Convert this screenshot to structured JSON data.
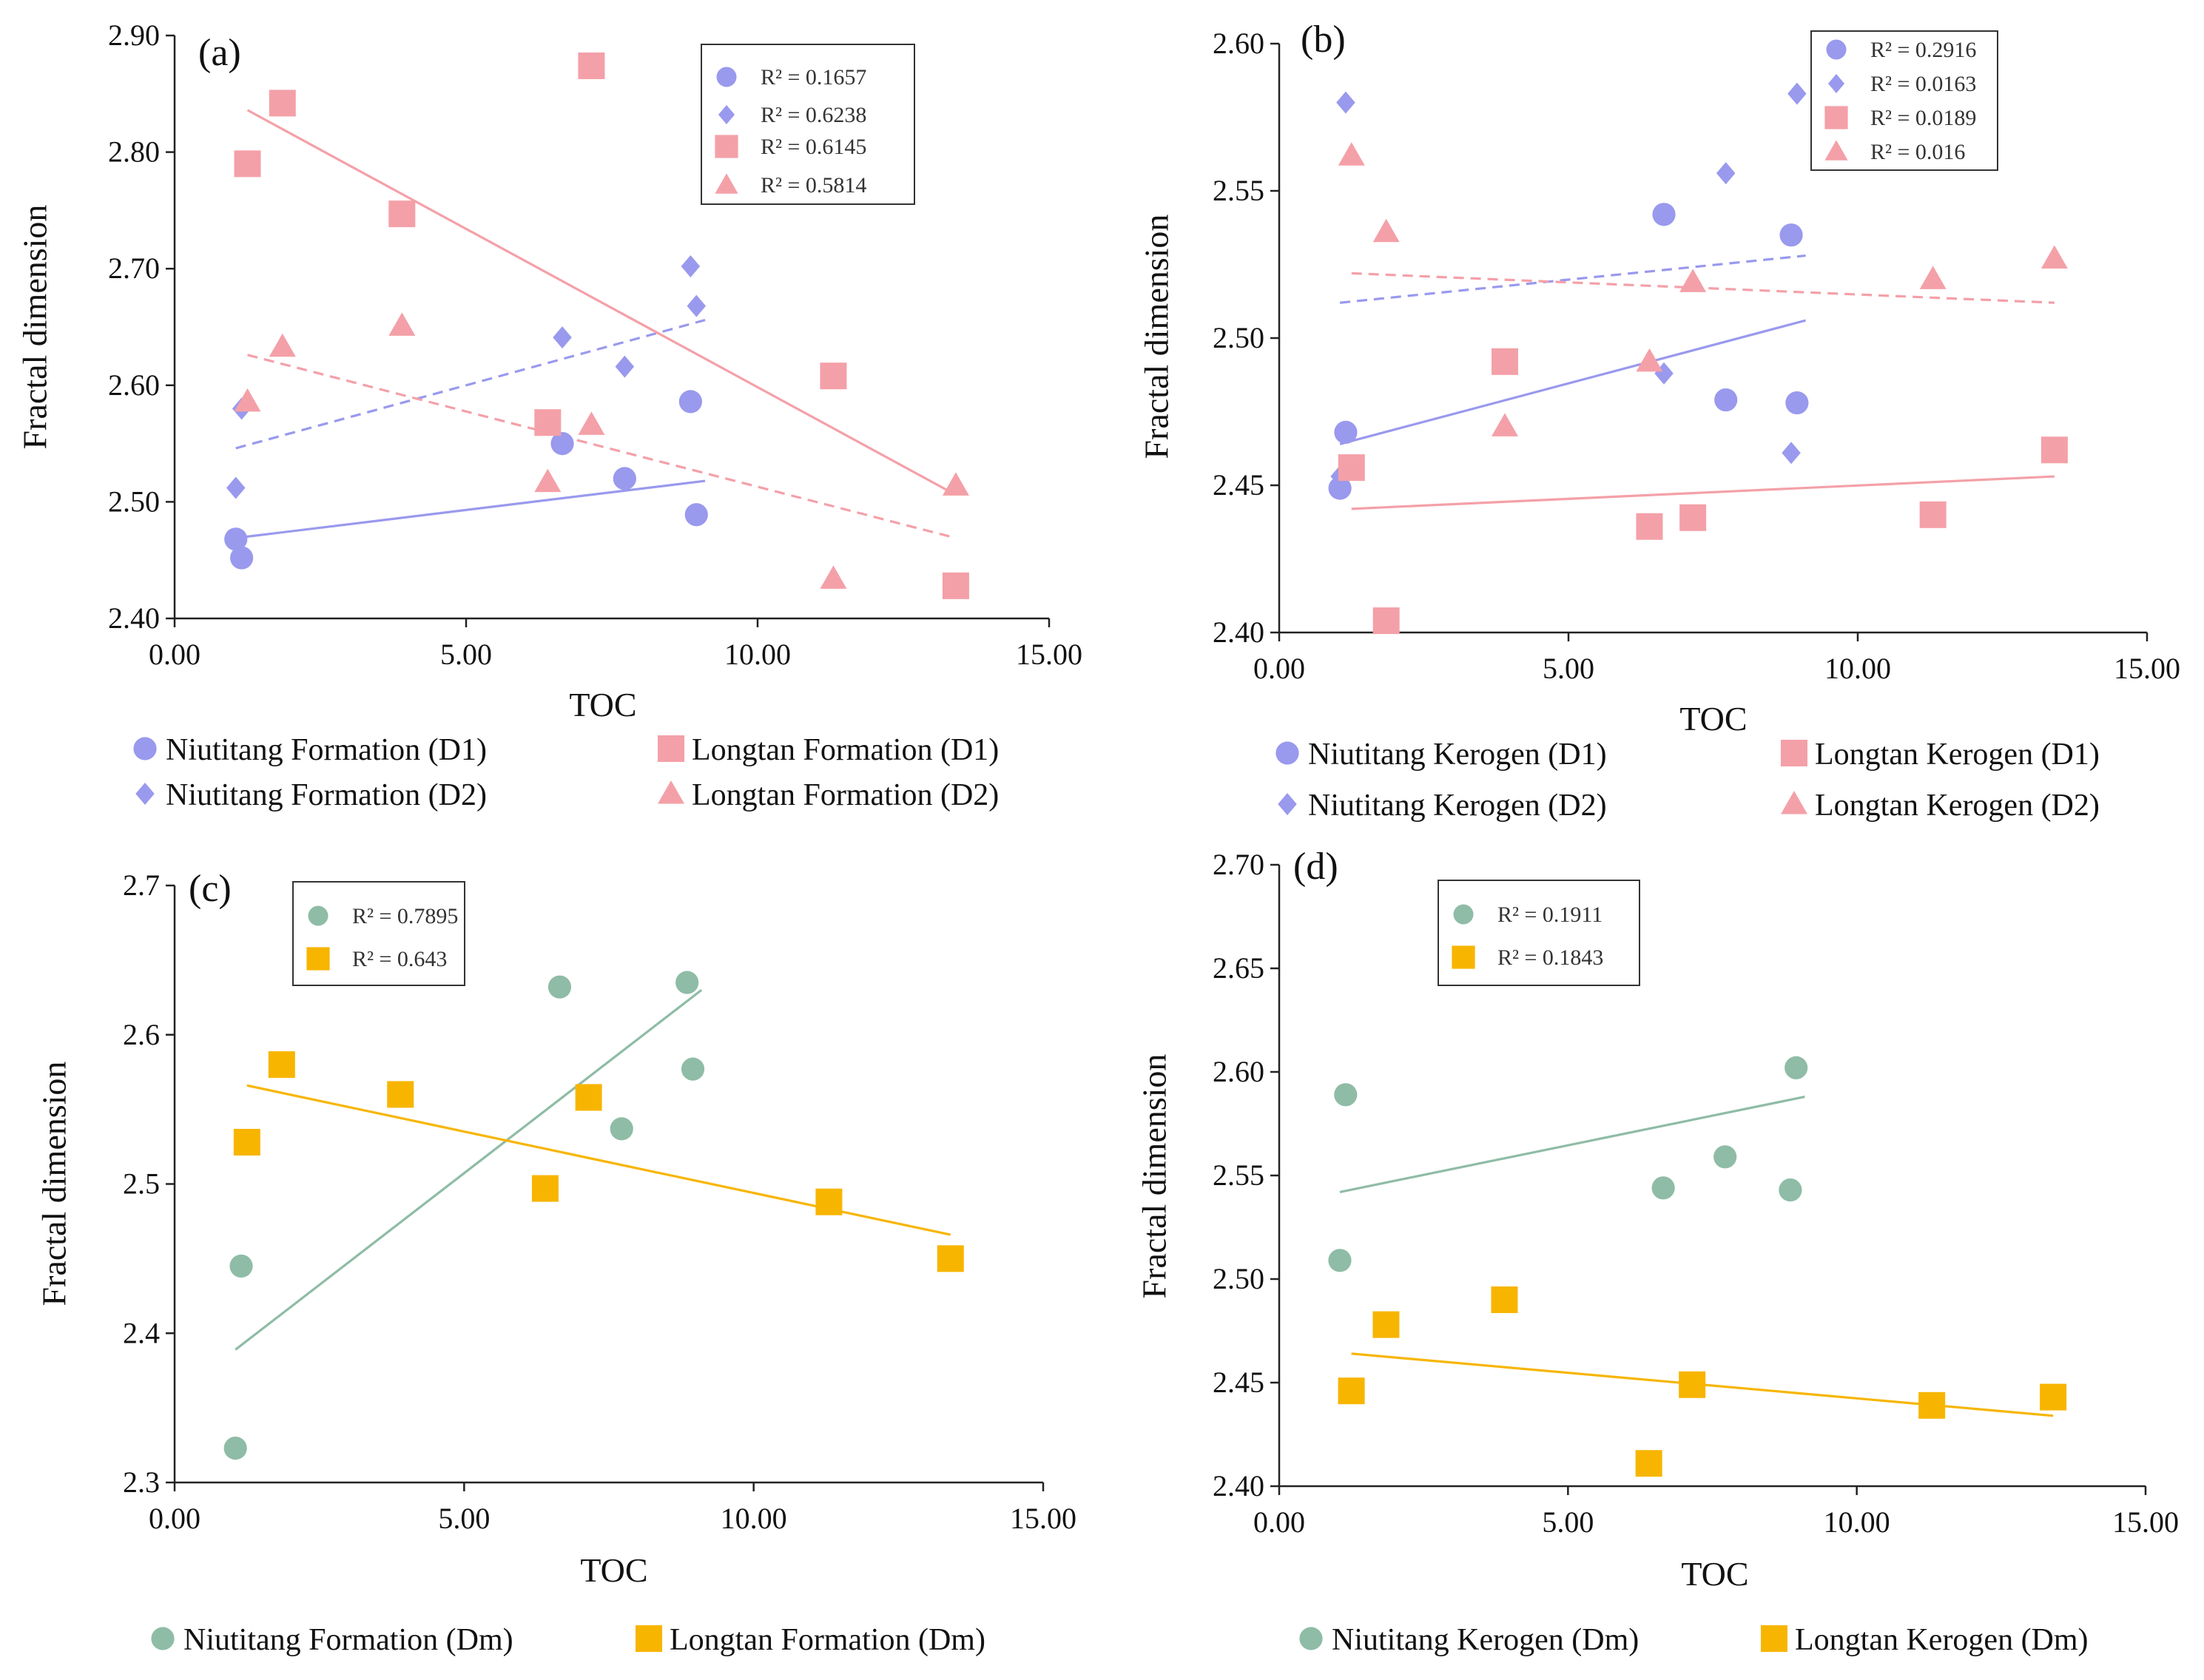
{
  "colors": {
    "niutitang": "#9999ee",
    "longtan": "#f4a0a8",
    "green": "#8fbca6",
    "yellow": "#f7b500",
    "axis": "#222222"
  },
  "chart_data": [
    {
      "type": "scatter",
      "panel_label": "(a)",
      "xlabel": "TOC",
      "ylabel": "Fractal dimension",
      "xlim": [
        0,
        15
      ],
      "ylim": [
        2.4,
        2.9
      ],
      "x_ticks": [
        "0.00",
        "5.00",
        "10.00",
        "15.00"
      ],
      "y_ticks": [
        "2.40",
        "2.50",
        "2.60",
        "2.70",
        "2.80",
        "2.90"
      ],
      "series": [
        {
          "name": "Niutitang Formation (D1)",
          "marker": "circle",
          "color": "#9999ee",
          "r2": "R² = 0.1657",
          "x": [
            1.05,
            1.15,
            6.65,
            7.72,
            8.85,
            8.95
          ],
          "y": [
            2.468,
            2.452,
            2.55,
            2.52,
            2.586,
            2.489
          ],
          "trend": {
            "x": [
              1.05,
              9.1
            ],
            "y": [
              2.469,
              2.518
            ],
            "dashed": false
          }
        },
        {
          "name": "Niutitang Formation (D2)",
          "marker": "diamond",
          "color": "#9999ee",
          "r2": "R² = 0.6238",
          "x": [
            1.05,
            1.15,
            6.65,
            7.72,
            8.85,
            8.95
          ],
          "y": [
            2.512,
            2.58,
            2.641,
            2.616,
            2.702,
            2.668
          ],
          "trend": {
            "x": [
              1.05,
              9.1
            ],
            "y": [
              2.546,
              2.656
            ],
            "dashed": true
          }
        },
        {
          "name": "Longtan Formation (D1)",
          "marker": "square",
          "color": "#f4a0a8",
          "r2": "R² = 0.6145",
          "x": [
            1.25,
            1.85,
            3.9,
            6.4,
            7.15,
            11.3,
            13.4
          ],
          "y": [
            2.79,
            2.842,
            2.747,
            2.568,
            2.874,
            2.608,
            2.428
          ],
          "trend": {
            "x": [
              1.25,
              13.4
            ],
            "y": [
              2.836,
              2.506
            ],
            "dashed": false
          }
        },
        {
          "name": "Longtan Formation (D2)",
          "marker": "triangle",
          "color": "#f4a0a8",
          "r2": "R² = 0.5814",
          "x": [
            1.25,
            1.85,
            3.9,
            6.4,
            7.15,
            11.3,
            13.4
          ],
          "y": [
            2.586,
            2.633,
            2.651,
            2.517,
            2.566,
            2.434,
            2.514
          ],
          "trend": {
            "x": [
              1.25,
              13.4
            ],
            "y": [
              2.626,
              2.469
            ],
            "dashed": true
          }
        }
      ]
    },
    {
      "type": "scatter",
      "panel_label": "(b)",
      "xlabel": "TOC",
      "ylabel": "Fractal dimension",
      "xlim": [
        0,
        15
      ],
      "ylim": [
        2.4,
        2.6
      ],
      "x_ticks": [
        "0.00",
        "5.00",
        "10.00",
        "15.00"
      ],
      "y_ticks": [
        "2.40",
        "2.45",
        "2.50",
        "2.55",
        "2.60"
      ],
      "series": [
        {
          "name": "Niutitang Kerogen (D1)",
          "marker": "circle",
          "color": "#9999ee",
          "r2": "R² = 0.2916",
          "x": [
            1.05,
            1.15,
            6.65,
            7.72,
            8.85,
            8.95
          ],
          "y": [
            2.449,
            2.468,
            2.542,
            2.479,
            2.535,
            2.478
          ],
          "trend": {
            "x": [
              1.05,
              9.1
            ],
            "y": [
              2.464,
              2.506
            ],
            "dashed": false
          }
        },
        {
          "name": "Niutitang Kerogen (D2)",
          "marker": "diamond",
          "color": "#9999ee",
          "r2": "R² = 0.0163",
          "x": [
            1.05,
            1.15,
            6.65,
            7.72,
            8.85,
            8.95
          ],
          "y": [
            2.453,
            2.58,
            2.488,
            2.556,
            2.461,
            2.583
          ],
          "trend": {
            "x": [
              1.05,
              9.1
            ],
            "y": [
              2.512,
              2.528
            ],
            "dashed": true
          }
        },
        {
          "name": "Longtan Kerogen (D1)",
          "marker": "square",
          "color": "#f4a0a8",
          "r2": "R² = 0.0189",
          "x": [
            1.25,
            1.85,
            3.9,
            6.4,
            7.15,
            11.3,
            13.4
          ],
          "y": [
            2.456,
            2.404,
            2.492,
            2.436,
            2.439,
            2.44,
            2.462
          ],
          "trend": {
            "x": [
              1.25,
              13.4
            ],
            "y": [
              2.442,
              2.453
            ],
            "dashed": false
          }
        },
        {
          "name": "Longtan Kerogen (D2)",
          "marker": "triangle",
          "color": "#f4a0a8",
          "r2": "R² = 0.016",
          "x": [
            1.25,
            1.85,
            3.9,
            6.4,
            7.15,
            11.3,
            13.4
          ],
          "y": [
            2.562,
            2.536,
            2.47,
            2.492,
            2.519,
            2.52,
            2.527
          ],
          "trend": {
            "x": [
              1.25,
              13.4
            ],
            "y": [
              2.522,
              2.512
            ],
            "dashed": true
          }
        }
      ]
    },
    {
      "type": "scatter",
      "panel_label": "(c)",
      "xlabel": "TOC",
      "ylabel": "Fractal dimension",
      "xlim": [
        0,
        15
      ],
      "ylim": [
        2.3,
        2.7
      ],
      "x_ticks": [
        "0.00",
        "5.00",
        "10.00",
        "15.00"
      ],
      "y_ticks": [
        "2.3",
        "2.4",
        "2.5",
        "2.6",
        "2.7"
      ],
      "series": [
        {
          "name": "Niutitang Formation (Dm)",
          "marker": "circle",
          "color": "#8fbca6",
          "r2": "R² = 0.7895",
          "x": [
            1.05,
            1.15,
            6.65,
            7.72,
            8.85,
            8.95
          ],
          "y": [
            2.323,
            2.445,
            2.632,
            2.537,
            2.635,
            2.577
          ],
          "trend": {
            "x": [
              1.05,
              9.1
            ],
            "y": [
              2.389,
              2.63
            ],
            "dashed": false
          }
        },
        {
          "name": "Longtan Formation (Dm)",
          "marker": "square",
          "color": "#f7b500",
          "r2": "R² = 0.643",
          "x": [
            1.25,
            1.85,
            3.9,
            6.4,
            7.15,
            11.3,
            13.4
          ],
          "y": [
            2.528,
            2.58,
            2.56,
            2.497,
            2.558,
            2.488,
            2.45
          ],
          "trend": {
            "x": [
              1.25,
              13.4
            ],
            "y": [
              2.566,
              2.466
            ],
            "dashed": false
          }
        }
      ]
    },
    {
      "type": "scatter",
      "panel_label": "(d)",
      "xlabel": "TOC",
      "ylabel": "Fractal dimension",
      "xlim": [
        0,
        15
      ],
      "ylim": [
        2.4,
        2.7
      ],
      "x_ticks": [
        "0.00",
        "5.00",
        "10.00",
        "15.00"
      ],
      "y_ticks": [
        "2.40",
        "2.45",
        "2.50",
        "2.55",
        "2.60",
        "2.65",
        "2.70"
      ],
      "series": [
        {
          "name": "Niutitang Kerogen (Dm)",
          "marker": "circle",
          "color": "#8fbca6",
          "r2": "R² = 0.1911",
          "x": [
            1.05,
            1.15,
            6.65,
            7.72,
            8.85,
            8.95
          ],
          "y": [
            2.509,
            2.589,
            2.544,
            2.559,
            2.543,
            2.602
          ],
          "trend": {
            "x": [
              1.05,
              9.1
            ],
            "y": [
              2.542,
              2.588
            ],
            "dashed": false
          }
        },
        {
          "name": "Longtan Kerogen (Dm)",
          "marker": "square",
          "color": "#f7b500",
          "r2": "R² = 0.1843",
          "x": [
            1.25,
            1.85,
            3.9,
            6.4,
            7.15,
            11.3,
            13.4
          ],
          "y": [
            2.446,
            2.478,
            2.49,
            2.411,
            2.449,
            2.439,
            2.443
          ],
          "trend": {
            "x": [
              1.25,
              13.4
            ],
            "y": [
              2.464,
              2.434
            ],
            "dashed": false
          }
        }
      ]
    }
  ]
}
